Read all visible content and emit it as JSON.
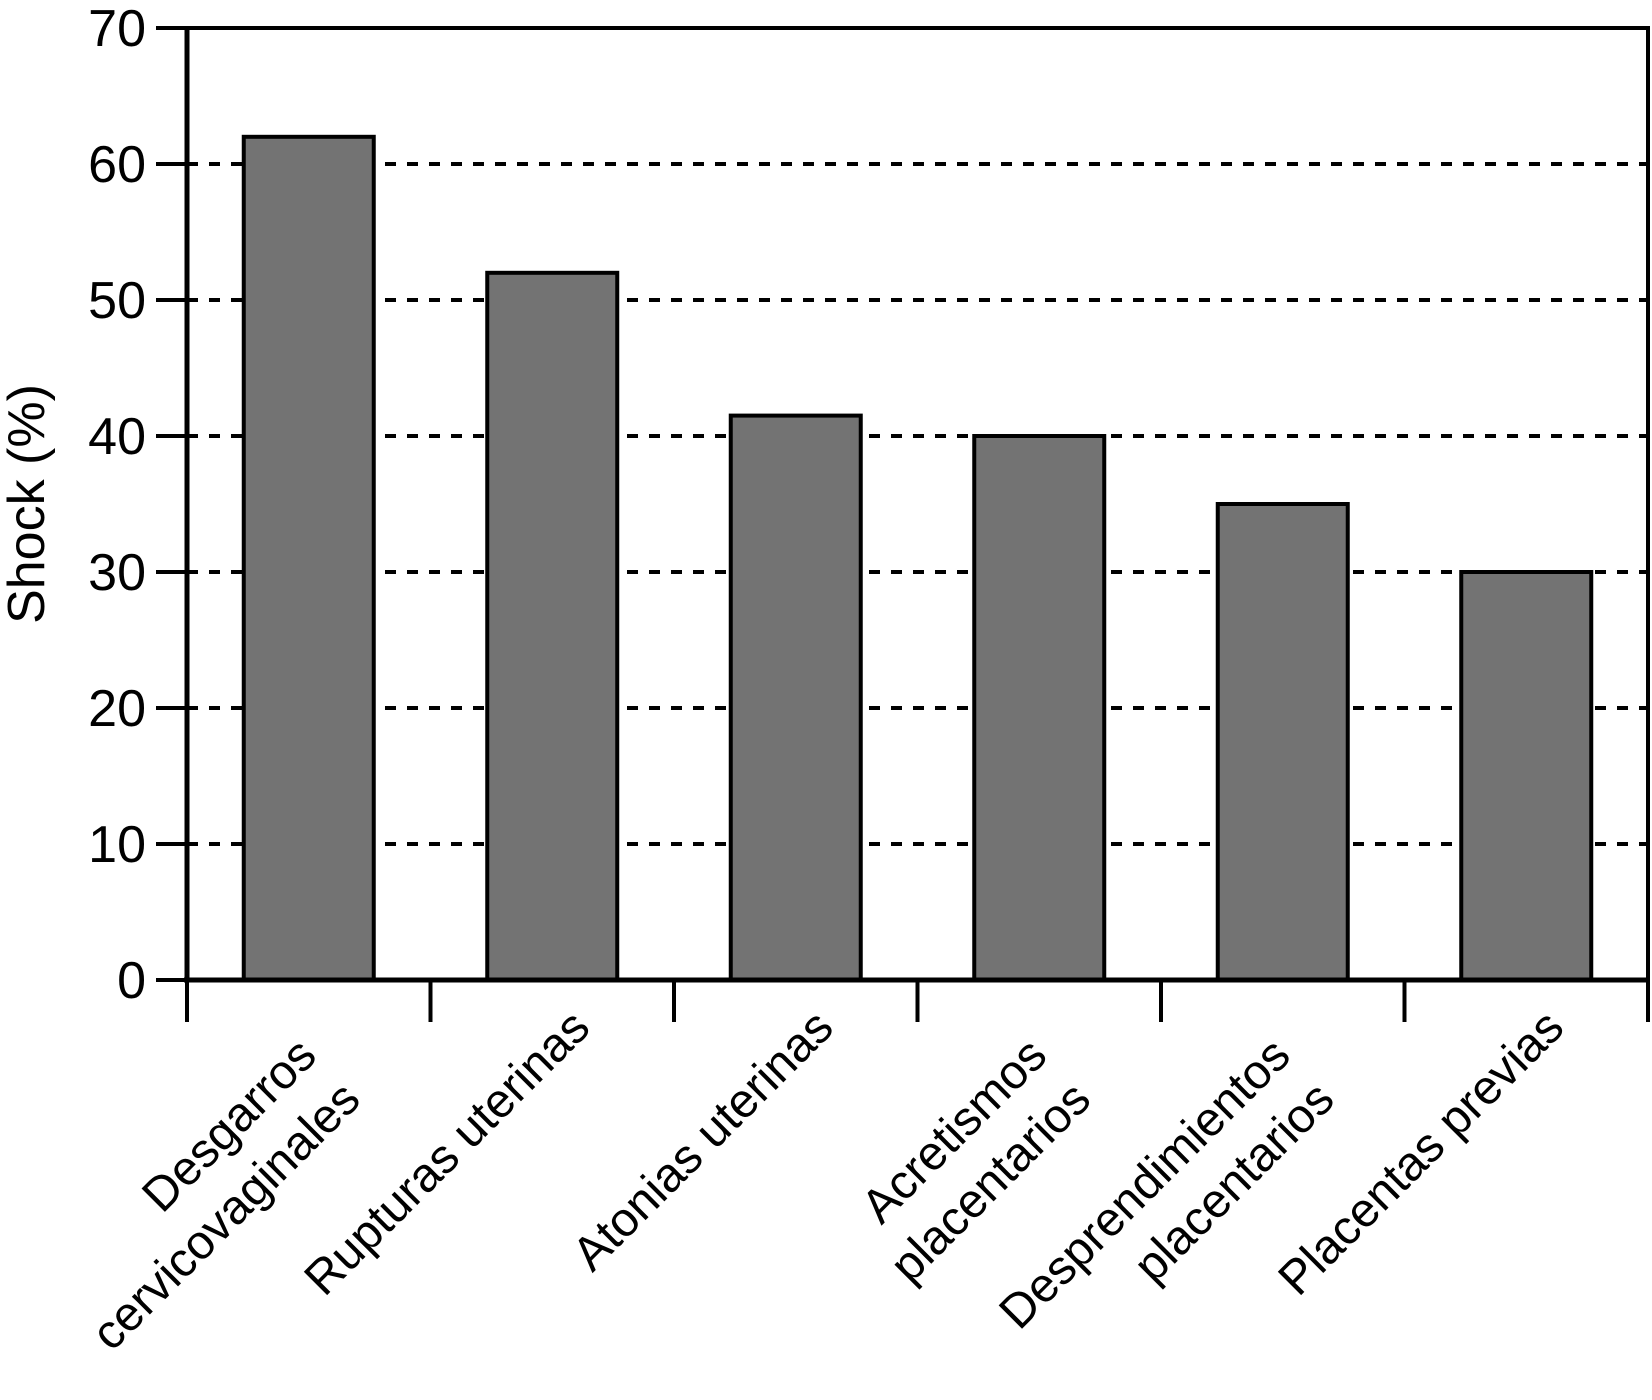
{
  "chart_data": {
    "type": "bar",
    "title": "",
    "ylabel": "Shock (%)",
    "xlabel": "",
    "categories": [
      "Desgarros\ncervicovaginales",
      "Rupturas uterinas",
      "Atonias uterinas",
      "Acretismos\nplacentarios",
      "Desprendimientos\nplacentarios",
      "Placentas previas"
    ],
    "values": [
      62,
      52,
      41.5,
      40,
      35,
      30
    ],
    "ylim": [
      0,
      70
    ],
    "yticks": [
      0,
      10,
      20,
      30,
      40,
      50,
      60,
      70
    ],
    "gridline_values": [
      10,
      20,
      30,
      40,
      50,
      60
    ],
    "grid_style": "horizontal-dotted",
    "legend_position": "none",
    "x_tick_label_rotation_deg": 45,
    "colors": {
      "bar_fill": "#737373",
      "bar_border": "#000000",
      "axis": "#000000",
      "background": "#ffffff"
    }
  }
}
